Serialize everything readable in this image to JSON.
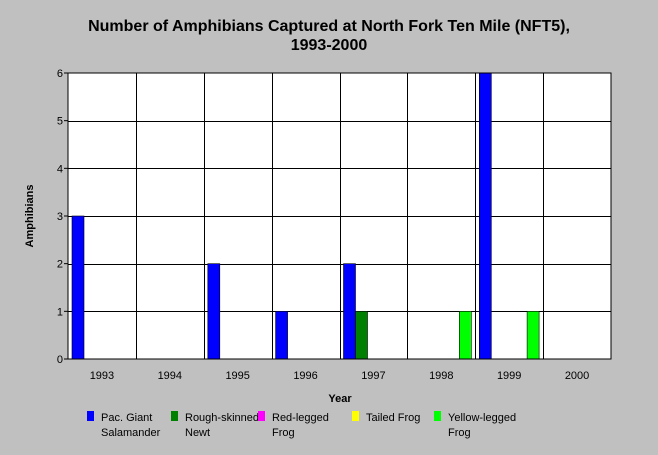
{
  "chart_data": {
    "type": "bar",
    "title": "Number of Amphibians Captured at North Fork Ten Mile (NFT5),",
    "subtitle": "1993-2000",
    "xlabel": "Year",
    "ylabel": "Amphibians",
    "categories": [
      "1993",
      "1994",
      "1995",
      "1996",
      "1997",
      "1998",
      "1999",
      "2000"
    ],
    "ylim": [
      0,
      6
    ],
    "yticks": [
      0,
      1,
      2,
      3,
      4,
      5,
      6
    ],
    "grid": true,
    "legend_position": "bottom",
    "series": [
      {
        "name_lines": [
          "Pac. Giant",
          "Salamander"
        ],
        "color": "#0000ff",
        "values": [
          3,
          0,
          2,
          1,
          2,
          0,
          6,
          0
        ]
      },
      {
        "name_lines": [
          "Rough-skinned",
          "Newt"
        ],
        "color": "#008000",
        "values": [
          0,
          0,
          0,
          0,
          1,
          0,
          0,
          0
        ]
      },
      {
        "name_lines": [
          "Red-legged",
          "Frog"
        ],
        "color": "#ff00ff",
        "values": [
          0,
          0,
          0,
          0,
          0,
          0,
          0,
          0
        ]
      },
      {
        "name_lines": [
          "Tailed Frog"
        ],
        "color": "#ffff00",
        "values": [
          0,
          0,
          0,
          0,
          0,
          0,
          0,
          0
        ]
      },
      {
        "name_lines": [
          "Yellow-legged",
          "Frog"
        ],
        "color": "#00ff00",
        "values": [
          0,
          0,
          0,
          0,
          0,
          1,
          1,
          0
        ]
      }
    ]
  }
}
